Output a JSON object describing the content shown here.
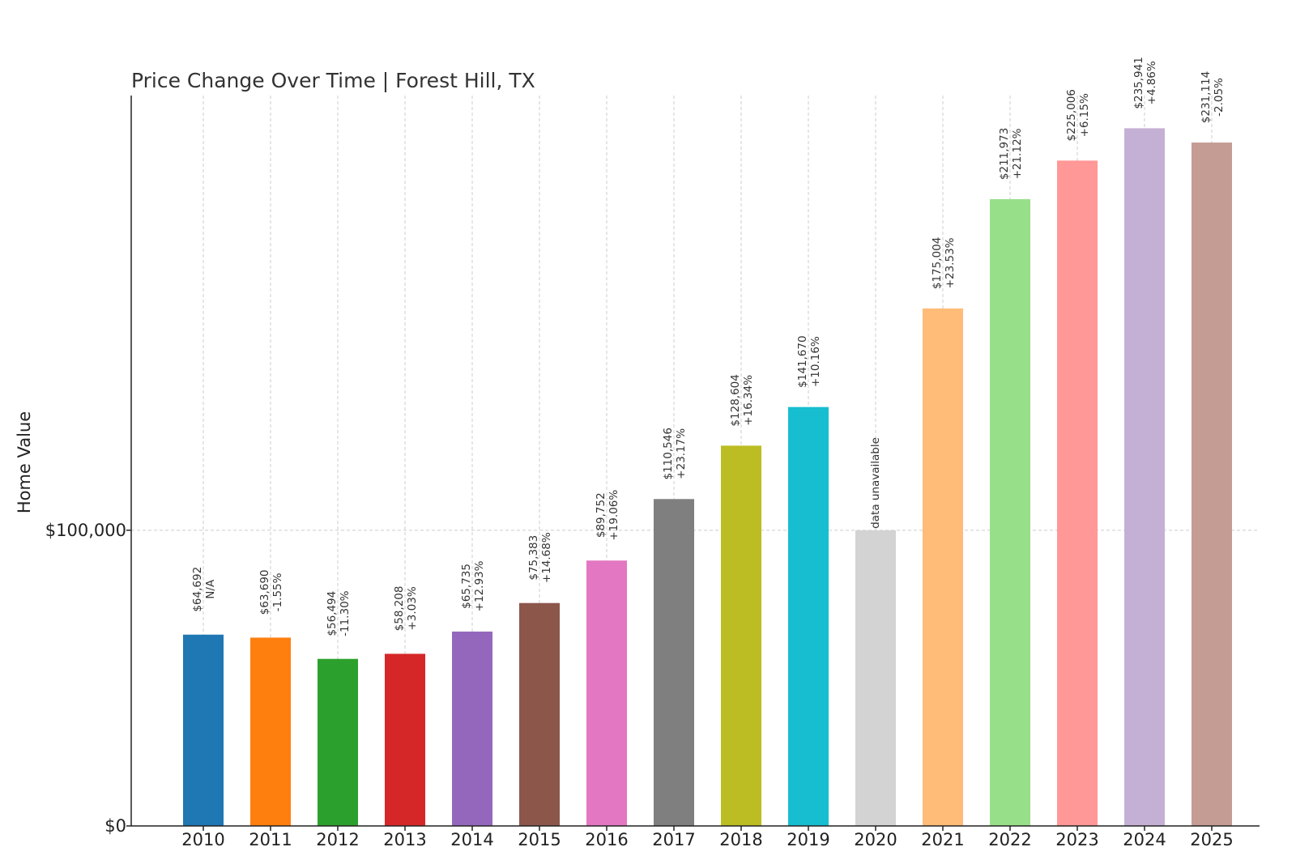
{
  "chart_data": {
    "type": "bar",
    "title": "Price Change Over Time | Forest Hill, TX",
    "xlabel": "",
    "ylabel": "Home Value",
    "ylim": [
      0,
      247000
    ],
    "yticks": [
      {
        "value": 0,
        "label": "$0"
      },
      {
        "value": 100000,
        "label": "$100,000"
      }
    ],
    "grid": true,
    "categories": [
      "2010",
      "2011",
      "2012",
      "2013",
      "2014",
      "2015",
      "2016",
      "2017",
      "2018",
      "2019",
      "2020",
      "2021",
      "2022",
      "2023",
      "2024",
      "2025"
    ],
    "values": [
      64692,
      63690,
      56494,
      58208,
      65735,
      75383,
      89752,
      110546,
      128604,
      141670,
      100000,
      175004,
      211973,
      225006,
      235941,
      231114
    ],
    "value_labels": [
      "$64,692",
      "$63,690",
      "$56,494",
      "$58,208",
      "$65,735",
      "$75,383",
      "$89,752",
      "$110,546",
      "$128,604",
      "$141,670",
      "",
      "$175,004",
      "$211,973",
      "$225,006",
      "$235,941",
      "$231,114"
    ],
    "change_labels": [
      "N/A",
      "-1.55%",
      "-11.30%",
      "+3.03%",
      "+12.93%",
      "+14.68%",
      "+19.06%",
      "+23.17%",
      "+16.34%",
      "+10.16%",
      "data unavailable",
      "+23.53%",
      "+21.12%",
      "+6.15%",
      "+4.86%",
      "-2.05%"
    ],
    "colors": [
      "#1f77b4",
      "#ff7f0e",
      "#2ca02c",
      "#d62728",
      "#9467bd",
      "#8c564b",
      "#e377c2",
      "#7f7f7f",
      "#bcbd22",
      "#17becf",
      "#d3d3d3",
      "#ffbb78",
      "#98df8a",
      "#ff9896",
      "#c5b0d5",
      "#c49c94"
    ]
  }
}
